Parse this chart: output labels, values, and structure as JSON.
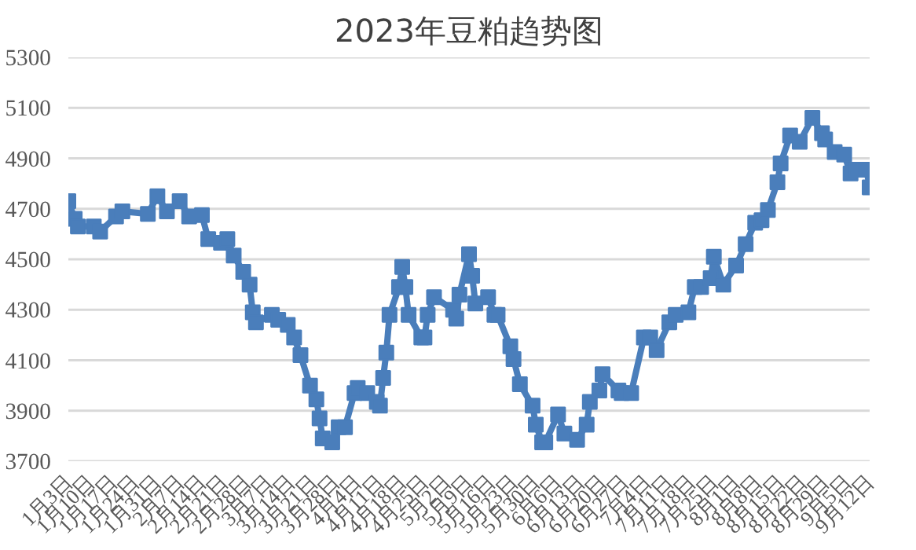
{
  "chart_data": {
    "type": "line",
    "title": "2023年豆粕趋势图",
    "marker": "square",
    "line_style": "solid",
    "grid": "y",
    "xlim": [
      "2023-01-03",
      "2023-09-12"
    ],
    "ylim": [
      3700,
      5300
    ],
    "yticks": [
      3700,
      3900,
      4100,
      4300,
      4500,
      4700,
      4900,
      5100,
      5300
    ],
    "xticks": [
      {
        "value": "2023-01-03",
        "label": "1月3日"
      },
      {
        "value": "2023-01-10",
        "label": "1月10日"
      },
      {
        "value": "2023-01-17",
        "label": "1月17日"
      },
      {
        "value": "2023-01-24",
        "label": "1月24日"
      },
      {
        "value": "2023-01-31",
        "label": "1月31日"
      },
      {
        "value": "2023-02-07",
        "label": "2月7日"
      },
      {
        "value": "2023-02-14",
        "label": "2月14日"
      },
      {
        "value": "2023-02-21",
        "label": "2月21日"
      },
      {
        "value": "2023-02-28",
        "label": "2月28日"
      },
      {
        "value": "2023-03-07",
        "label": "3月7日"
      },
      {
        "value": "2023-03-14",
        "label": "3月14日"
      },
      {
        "value": "2023-03-21",
        "label": "3月21日"
      },
      {
        "value": "2023-03-28",
        "label": "3月28日"
      },
      {
        "value": "2023-04-04",
        "label": "4月4日"
      },
      {
        "value": "2023-04-11",
        "label": "4月11日"
      },
      {
        "value": "2023-04-18",
        "label": "4月18日"
      },
      {
        "value": "2023-04-25",
        "label": "4月25日"
      },
      {
        "value": "2023-05-02",
        "label": "5月2日"
      },
      {
        "value": "2023-05-09",
        "label": "5月9日"
      },
      {
        "value": "2023-05-16",
        "label": "5月16日"
      },
      {
        "value": "2023-05-23",
        "label": "5月23日"
      },
      {
        "value": "2023-05-30",
        "label": "5月30日"
      },
      {
        "value": "2023-06-06",
        "label": "6月6日"
      },
      {
        "value": "2023-06-13",
        "label": "6月13日"
      },
      {
        "value": "2023-06-20",
        "label": "6月20日"
      },
      {
        "value": "2023-06-27",
        "label": "6月27日"
      },
      {
        "value": "2023-07-04",
        "label": "7月4日"
      },
      {
        "value": "2023-07-11",
        "label": "7月11日"
      },
      {
        "value": "2023-07-18",
        "label": "7月18日"
      },
      {
        "value": "2023-07-25",
        "label": "7月25日"
      },
      {
        "value": "2023-08-01",
        "label": "8月1日"
      },
      {
        "value": "2023-08-08",
        "label": "8月8日"
      },
      {
        "value": "2023-08-15",
        "label": "8月15日"
      },
      {
        "value": "2023-08-22",
        "label": "8月22日"
      },
      {
        "value": "2023-08-29",
        "label": "8月29日"
      },
      {
        "value": "2023-09-05",
        "label": "9月5日"
      },
      {
        "value": "2023-09-12",
        "label": "9月12日"
      }
    ],
    "x": [
      "2023-01-03",
      "2023-01-05",
      "2023-01-06",
      "2023-01-11",
      "2023-01-13",
      "2023-01-18",
      "2023-01-20",
      "2023-01-28",
      "2023-01-31",
      "2023-02-03",
      "2023-02-07",
      "2023-02-10",
      "2023-02-14",
      "2023-02-16",
      "2023-02-20",
      "2023-02-22",
      "2023-02-24",
      "2023-02-27",
      "2023-03-01",
      "2023-03-02",
      "2023-03-03",
      "2023-03-08",
      "2023-03-10",
      "2023-03-13",
      "2023-03-15",
      "2023-03-17",
      "2023-03-20",
      "2023-03-22",
      "2023-03-23",
      "2023-03-24",
      "2023-03-27",
      "2023-03-29",
      "2023-03-31",
      "2023-04-03",
      "2023-04-04",
      "2023-04-07",
      "2023-04-10",
      "2023-04-11",
      "2023-04-12",
      "2023-04-13",
      "2023-04-14",
      "2023-04-17",
      "2023-04-18",
      "2023-04-19",
      "2023-04-20",
      "2023-04-24",
      "2023-04-25",
      "2023-04-26",
      "2023-04-28",
      "2023-05-04",
      "2023-05-05",
      "2023-05-06",
      "2023-05-09",
      "2023-05-10",
      "2023-05-11",
      "2023-05-15",
      "2023-05-17",
      "2023-05-18",
      "2023-05-22",
      "2023-05-23",
      "2023-05-25",
      "2023-05-29",
      "2023-05-30",
      "2023-06-01",
      "2023-06-02",
      "2023-06-06",
      "2023-06-08",
      "2023-06-12",
      "2023-06-15",
      "2023-06-16",
      "2023-06-19",
      "2023-06-20",
      "2023-06-25",
      "2023-06-26",
      "2023-06-29",
      "2023-07-03",
      "2023-07-05",
      "2023-07-07",
      "2023-07-11",
      "2023-07-13",
      "2023-07-17",
      "2023-07-19",
      "2023-07-21",
      "2023-07-24",
      "2023-07-25",
      "2023-07-28",
      "2023-08-01",
      "2023-08-04",
      "2023-08-07",
      "2023-08-09",
      "2023-08-11",
      "2023-08-14",
      "2023-08-15",
      "2023-08-18",
      "2023-08-21",
      "2023-08-25",
      "2023-08-28",
      "2023-08-29",
      "2023-09-01",
      "2023-09-04",
      "2023-09-06",
      "2023-09-08",
      "2023-09-11",
      "2023-09-12"
    ],
    "series": [
      {
        "color": "#4a7ebb",
        "values": [
          4730,
          4660,
          4630,
          4630,
          4610,
          4670,
          4690,
          4680,
          4750,
          4690,
          4730,
          4670,
          4675,
          4580,
          4565,
          4580,
          4515,
          4450,
          4400,
          4290,
          4250,
          4280,
          4260,
          4240,
          4190,
          4120,
          4000,
          3945,
          3870,
          3790,
          3775,
          3835,
          3835,
          3970,
          3990,
          3970,
          3935,
          3920,
          4030,
          4130,
          4280,
          4390,
          4470,
          4390,
          4280,
          4190,
          4190,
          4280,
          4350,
          4300,
          4265,
          4360,
          4520,
          4435,
          4325,
          4350,
          4280,
          4280,
          4155,
          4105,
          4005,
          3920,
          3845,
          3775,
          3775,
          3885,
          3810,
          3785,
          3845,
          3935,
          3980,
          4045,
          3980,
          3970,
          3970,
          4190,
          4190,
          4140,
          4250,
          4280,
          4290,
          4390,
          4390,
          4425,
          4510,
          4400,
          4475,
          4560,
          4645,
          4655,
          4695,
          4805,
          4880,
          4990,
          4965,
          5060,
          5000,
          4975,
          4925,
          4915,
          4840,
          4855,
          4855,
          4785
        ]
      }
    ]
  }
}
